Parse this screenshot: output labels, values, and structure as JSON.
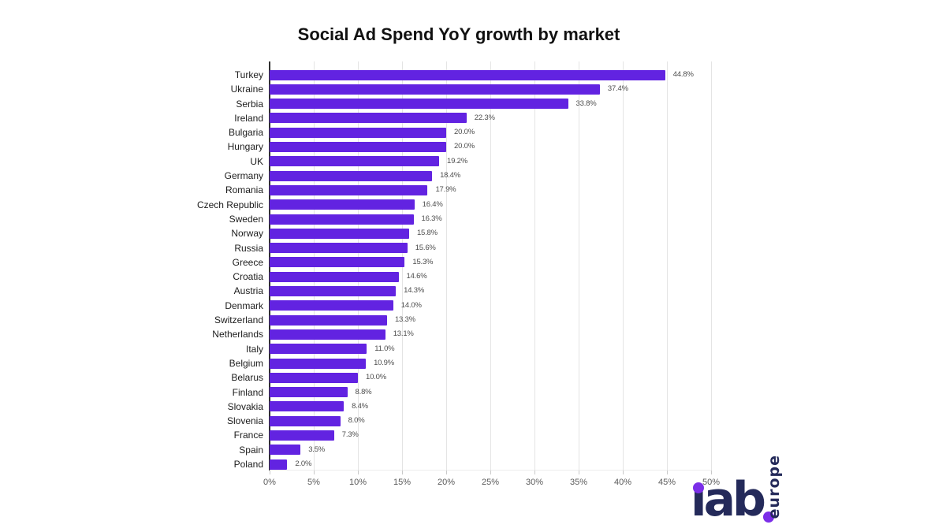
{
  "chart_data": {
    "type": "bar",
    "orientation": "horizontal",
    "title": "Social Ad Spend YoY growth by market",
    "categories": [
      "Turkey",
      "Ukraine",
      "Serbia",
      "Ireland",
      "Bulgaria",
      "Hungary",
      "UK",
      "Germany",
      "Romania",
      "Czech Republic",
      "Sweden",
      "Norway",
      "Russia",
      "Greece",
      "Croatia",
      "Austria",
      "Denmark",
      "Switzerland",
      "Netherlands",
      "Italy",
      "Belgium",
      "Belarus",
      "Finland",
      "Slovakia",
      "Slovenia",
      "France",
      "Spain",
      "Poland"
    ],
    "values": [
      44.8,
      37.4,
      33.8,
      22.3,
      20.0,
      20.0,
      19.2,
      18.4,
      17.9,
      16.4,
      16.3,
      15.8,
      15.6,
      15.3,
      14.6,
      14.3,
      14.0,
      13.3,
      13.1,
      11.0,
      10.9,
      10.0,
      8.8,
      8.4,
      8.0,
      7.3,
      3.5,
      2.0
    ],
    "value_suffix": "%",
    "x_ticks": [
      "0%",
      "5%",
      "10%",
      "15%",
      "20%",
      "25%",
      "30%",
      "35%",
      "40%",
      "45%",
      "50%"
    ],
    "xlim": [
      0,
      50
    ],
    "xlabel": "",
    "ylabel": "",
    "grid": "vertical-light",
    "legend": "none",
    "bar_color": "#6223e1"
  },
  "colors": {
    "bar": "#6223e1",
    "axis": "#303030",
    "gridline": "#e4e4e4",
    "category_label": "#1c1c1c",
    "value_label": "#4d4d4d",
    "tick_label": "#5a5a5a",
    "title": "#111111",
    "logo_navy": "#242a5a",
    "logo_purple": "#7b2ee8",
    "background": "#ffffff"
  },
  "logo": {
    "name": "iab-europe",
    "iab": "iab",
    "europe": "europe"
  }
}
